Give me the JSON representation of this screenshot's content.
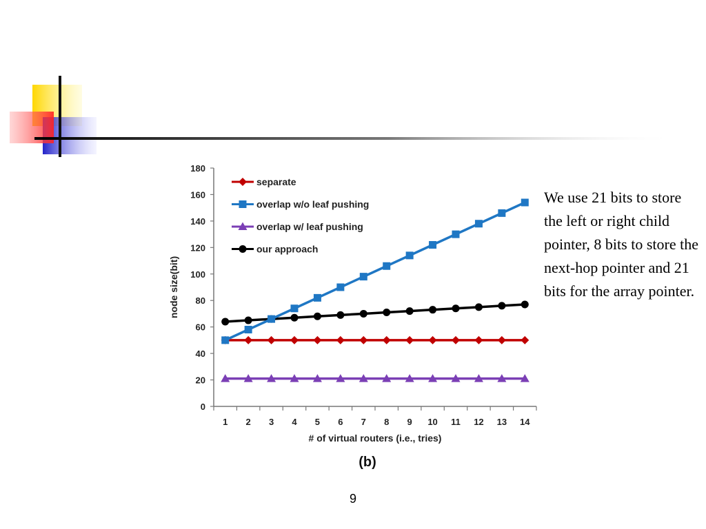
{
  "slide": {
    "note": "We use 21 bits to store the left or right child pointer, 8 bits to store the next-hop pointer and 21 bits for the array pointer.",
    "page_number": "9"
  },
  "colors": {
    "separate": "#c00000",
    "overlap_wo": "#1f77c4",
    "overlap_w": "#7b3fb5",
    "our_approach": "#000000",
    "deco_yellow": "#ffd700",
    "deco_red": "#ff3030",
    "deco_blue": "#2323c8"
  },
  "chart_data": {
    "type": "line",
    "title": "",
    "caption": "(b)",
    "xlabel": "# of virtual routers (i.e., tries)",
    "ylabel": "node size(bit)",
    "x": [
      1,
      2,
      3,
      4,
      5,
      6,
      7,
      8,
      9,
      10,
      11,
      12,
      13,
      14
    ],
    "x_ticks": [
      "1",
      "2",
      "3",
      "4",
      "5",
      "6",
      "7",
      "8",
      "9",
      "10",
      "11",
      "12",
      "13",
      "14"
    ],
    "y_ticks": [
      "0",
      "20",
      "40",
      "60",
      "80",
      "100",
      "120",
      "140",
      "160",
      "180"
    ],
    "ylim": [
      0,
      180
    ],
    "grid": false,
    "legend_position": "top-left",
    "series": [
      {
        "name": "separate",
        "marker": "diamond",
        "color": "#c00000",
        "values": [
          50,
          50,
          50,
          50,
          50,
          50,
          50,
          50,
          50,
          50,
          50,
          50,
          50,
          50
        ]
      },
      {
        "name": "overlap w/o leaf pushing",
        "marker": "square",
        "color": "#1f77c4",
        "values": [
          50,
          58,
          66,
          74,
          82,
          90,
          98,
          106,
          114,
          122,
          130,
          138,
          146,
          154
        ]
      },
      {
        "name": "overlap w/ leaf pushing",
        "marker": "triangle",
        "color": "#7b3fb5",
        "values": [
          21,
          21,
          21,
          21,
          21,
          21,
          21,
          21,
          21,
          21,
          21,
          21,
          21,
          21
        ]
      },
      {
        "name": "our approach",
        "marker": "circle",
        "color": "#000000",
        "values": [
          64,
          65,
          66,
          67,
          68,
          69,
          70,
          71,
          72,
          73,
          74,
          75,
          76,
          77
        ]
      }
    ]
  }
}
